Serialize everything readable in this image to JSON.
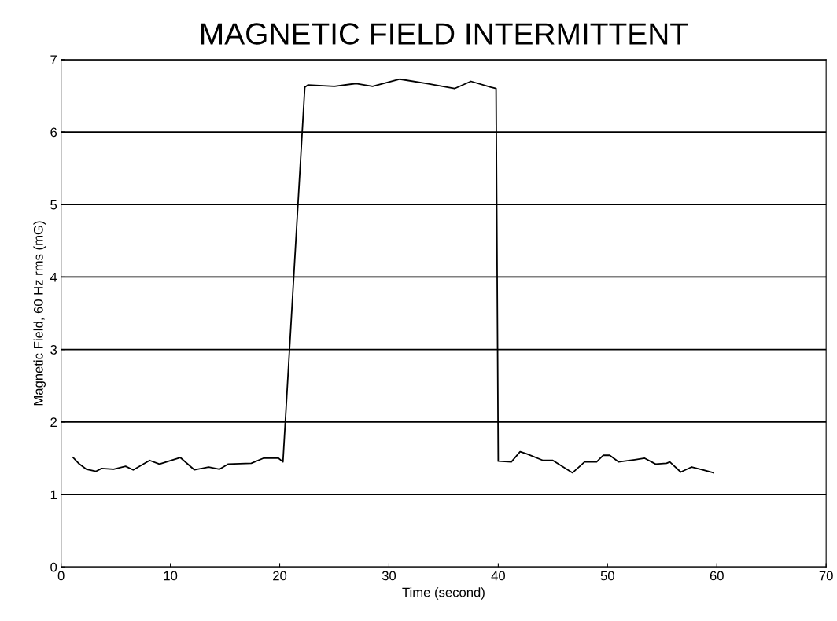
{
  "chart_data": {
    "type": "line",
    "title": "MAGNETIC FIELD INTERMITTENT",
    "xlabel": "Time (second)",
    "ylabel": "Magnetic Field, 60 Hz rms (mG)",
    "x": [
      1.1,
      1.6,
      2.3,
      3.2,
      3.7,
      4.8,
      5.9,
      6.6,
      8.1,
      9,
      10.9,
      12.2,
      13.5,
      14.5,
      15.3,
      17.4,
      18.5,
      19.9,
      20.3,
      22.3,
      22.6,
      25,
      27,
      28.5,
      31,
      33.5,
      36,
      37.5,
      39.3,
      39.8,
      40,
      41.2,
      42,
      42.6,
      44.1,
      45,
      46.8,
      47.9,
      49,
      49.6,
      50.2,
      51,
      52.5,
      53.4,
      54.4,
      55.4,
      55.7,
      56.7,
      57.7,
      58.7,
      59.7
    ],
    "series": [
      {
        "color": "#000000",
        "values": [
          1.51,
          1.43,
          1.35,
          1.32,
          1.36,
          1.35,
          1.39,
          1.34,
          1.47,
          1.42,
          1.51,
          1.34,
          1.38,
          1.35,
          1.42,
          1.43,
          1.5,
          1.5,
          1.45,
          6.62,
          6.65,
          6.63,
          6.67,
          6.63,
          6.73,
          6.67,
          6.6,
          6.7,
          6.62,
          6.6,
          1.46,
          1.45,
          1.59,
          1.56,
          1.47,
          1.47,
          1.3,
          1.45,
          1.45,
          1.54,
          1.54,
          1.45,
          1.48,
          1.5,
          1.42,
          1.43,
          1.45,
          1.31,
          1.38,
          1.34,
          1.3
        ]
      }
    ],
    "xlim": [
      0,
      70
    ],
    "xticks": [
      0,
      10,
      20,
      30,
      40,
      50,
      60,
      70
    ],
    "ylim": [
      0,
      7
    ],
    "yticks": [
      0,
      1,
      2,
      3,
      4,
      5,
      6,
      7
    ],
    "grid": "y"
  }
}
